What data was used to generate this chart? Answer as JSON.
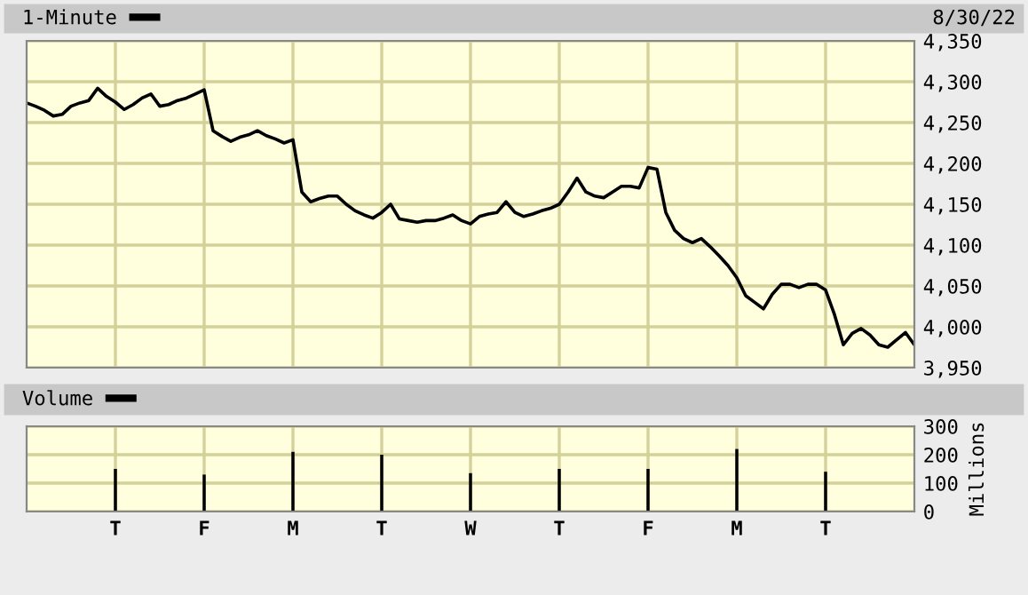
{
  "chart_data": [
    {
      "type": "line",
      "categories": [
        null,
        null,
        null,
        null,
        null,
        null,
        null,
        null,
        null,
        null,
        null,
        null,
        null,
        null,
        null,
        null,
        null,
        null,
        null,
        null,
        null,
        null,
        null,
        null,
        null,
        null,
        null,
        null,
        null,
        null,
        null,
        null,
        null,
        null,
        null,
        null,
        null,
        null,
        null,
        null,
        null,
        null,
        null,
        null,
        null,
        null,
        null,
        null,
        null,
        null,
        null,
        null,
        null,
        null,
        null,
        null,
        null,
        null,
        null,
        null,
        null,
        null,
        null,
        null,
        null,
        null,
        null,
        null,
        null,
        null,
        null,
        null,
        null,
        null,
        null,
        null,
        null,
        null,
        null,
        null,
        null,
        null,
        null,
        null,
        null,
        null,
        null,
        null,
        null,
        null,
        null,
        null,
        null,
        null,
        null,
        null,
        null,
        null,
        null,
        null,
        null
      ],
      "series": [
        {
          "name": "1-Minute",
          "color": "#000000",
          "values": [
            4274,
            4270,
            4265,
            4258,
            4260,
            4270,
            4274,
            4277,
            4292,
            4282,
            4275,
            4266,
            4272,
            4280,
            4285,
            4270,
            4272,
            4277,
            4280,
            4285,
            4290,
            4240,
            4233,
            4227,
            4232,
            4235,
            4240,
            4234,
            4230,
            4225,
            4229,
            4165,
            4153,
            4157,
            4160,
            4160,
            4150,
            4142,
            4137,
            4133,
            4140,
            4150,
            4132,
            4130,
            4128,
            4130,
            4130,
            4133,
            4137,
            4130,
            4126,
            4135,
            4138,
            4140,
            4153,
            4140,
            4135,
            4138,
            4142,
            4145,
            4150,
            4165,
            4182,
            4165,
            4160,
            4158,
            4165,
            4172,
            4172,
            4170,
            4195,
            4193,
            4140,
            4118,
            4108,
            4103,
            4108,
            4098,
            4087,
            4075,
            4060,
            4038,
            4030,
            4022,
            4040,
            4052,
            4052,
            4048,
            4052,
            4052,
            4045,
            4015,
            3978,
            3992,
            3998,
            3990,
            3978,
            3975,
            3984,
            3993,
            3978
          ]
        }
      ],
      "ylim": [
        3950,
        4350
      ],
      "yticks": [
        {
          "value": 3950,
          "label": "3,950"
        },
        {
          "value": 4000,
          "label": "4,000"
        },
        {
          "value": 4050,
          "label": "4,050"
        },
        {
          "value": 4100,
          "label": "4,100"
        },
        {
          "value": 4150,
          "label": "4,150"
        },
        {
          "value": 4200,
          "label": "4,200"
        },
        {
          "value": 4250,
          "label": "4,250"
        },
        {
          "value": 4300,
          "label": "4,300"
        },
        {
          "value": 4350,
          "label": "4,350"
        }
      ],
      "tick_labels": "y",
      "grid": true,
      "legend": "top left",
      "annotations": [
        "8/30/22"
      ]
    },
    {
      "type": "bar",
      "categories": [
        null,
        null,
        null,
        null,
        null,
        null,
        null,
        null,
        null,
        null,
        "T",
        null,
        null,
        null,
        null,
        null,
        null,
        null,
        null,
        null,
        "F",
        null,
        null,
        null,
        null,
        null,
        null,
        null,
        null,
        null,
        "M",
        null,
        null,
        null,
        null,
        null,
        null,
        null,
        null,
        null,
        "T",
        null,
        null,
        null,
        null,
        null,
        null,
        null,
        null,
        null,
        "W",
        null,
        null,
        null,
        null,
        null,
        null,
        null,
        null,
        null,
        "T",
        null,
        null,
        null,
        null,
        null,
        null,
        null,
        null,
        null,
        "F",
        null,
        null,
        null,
        null,
        null,
        null,
        null,
        null,
        null,
        "M",
        null,
        null,
        null,
        null,
        null,
        null,
        null,
        null,
        null,
        "T",
        null,
        null,
        null,
        null,
        null,
        null,
        null,
        null,
        null,
        null
      ],
      "series": [
        {
          "name": "Volume",
          "color": "#000000",
          "values": [
            0,
            0,
            0,
            0,
            0,
            0,
            0,
            0,
            0,
            0,
            150,
            0,
            0,
            0,
            0,
            0,
            0,
            0,
            0,
            0,
            130,
            0,
            0,
            0,
            0,
            0,
            0,
            0,
            0,
            0,
            210,
            0,
            0,
            0,
            0,
            0,
            0,
            0,
            0,
            0,
            200,
            0,
            0,
            0,
            0,
            0,
            0,
            0,
            0,
            0,
            135,
            0,
            0,
            0,
            0,
            0,
            0,
            0,
            0,
            0,
            150,
            0,
            0,
            0,
            0,
            0,
            0,
            0,
            0,
            0,
            150,
            0,
            0,
            0,
            0,
            0,
            0,
            0,
            0,
            0,
            220,
            0,
            0,
            0,
            0,
            0,
            0,
            0,
            0,
            0,
            140,
            0,
            0,
            0,
            0,
            0,
            0,
            0,
            0,
            0,
            0
          ]
        }
      ],
      "ylim": [
        0,
        300
      ],
      "yticks": [
        0,
        100,
        200,
        300
      ],
      "ylabel": "Millions",
      "grid": true,
      "legend": "top left"
    }
  ]
}
